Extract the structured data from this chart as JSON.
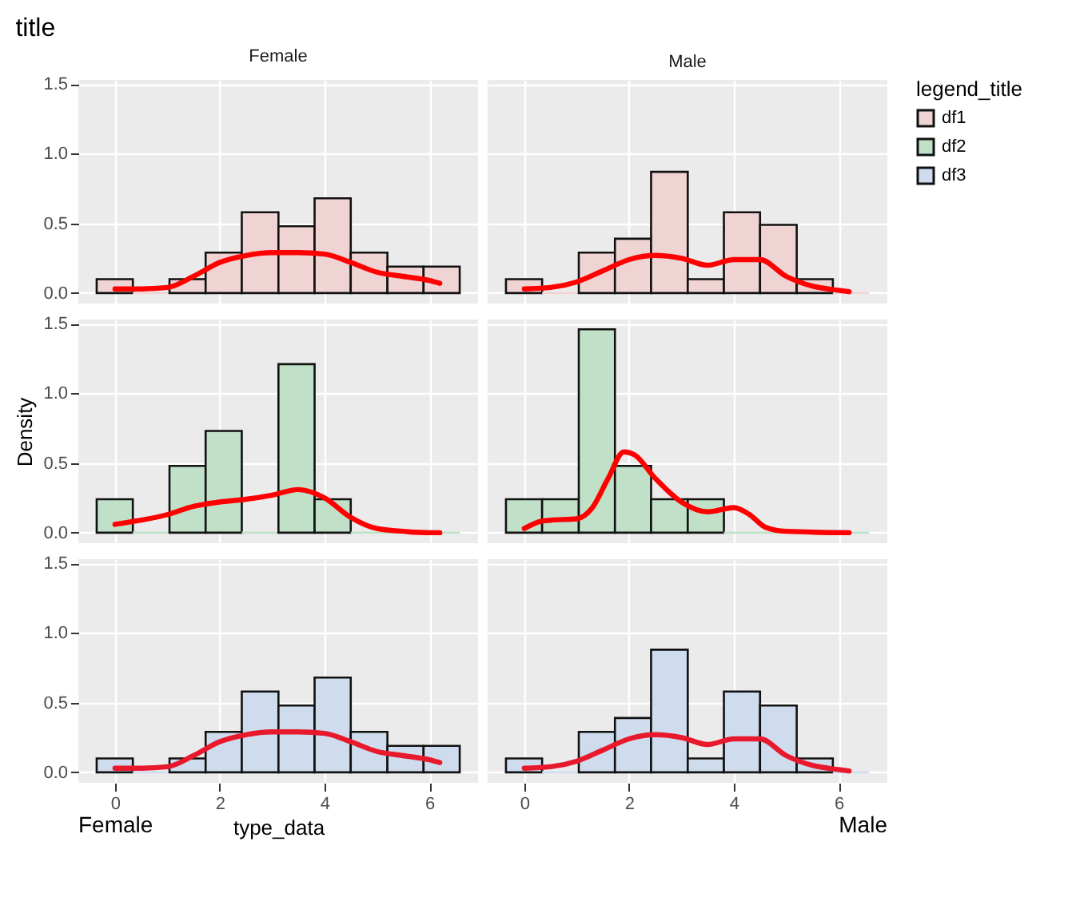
{
  "chart_data": [
    {
      "type": "histogram",
      "title": "title",
      "subtitle": "Female",
      "legend_title": "legend_title",
      "legend": "right",
      "grid": true,
      "tick_labels": "y",
      "xlim": [
        -0.7,
        6.93
      ],
      "ylim": [
        -0.075,
        1.53
      ],
      "xticks": [
        {
          "value": 0,
          "label": null
        },
        {
          "value": 2,
          "label": null
        },
        {
          "value": 4,
          "label": null
        },
        {
          "value": 6,
          "label": null
        }
      ],
      "yticks": [
        {
          "value": 0,
          "label": "0.0"
        },
        {
          "value": 0.5,
          "label": "0.5"
        },
        {
          "value": 1,
          "label": "1.0"
        },
        {
          "value": 1.5,
          "label": "1.5"
        }
      ],
      "bins": [
        -0.35,
        0.34,
        1.04,
        1.73,
        2.42,
        3.12,
        3.81,
        4.5,
        5.2,
        5.89,
        6.58
      ],
      "series": [
        {
          "name": "df1",
          "color": "#f0d4d4",
          "values": [
            0.1,
            0,
            0.1,
            0.29,
            0.58,
            0.48,
            0.68,
            0.29,
            0.19,
            0.19
          ]
        },
        {
          "type": "line",
          "color": "#ff0000",
          "x": [
            0,
            0.5,
            1,
            1.5,
            2,
            2.5,
            3,
            3.5,
            4,
            4.5,
            5,
            5.5,
            6,
            6.2
          ],
          "values": [
            0.03,
            0.03,
            0.04,
            0.12,
            0.22,
            0.27,
            0.29,
            0.29,
            0.28,
            0.22,
            0.15,
            0.12,
            0.09,
            0.07
          ]
        }
      ]
    },
    {
      "type": "histogram",
      "subtitle": "Male",
      "grid": true,
      "tick_labels": false,
      "xlim": [
        -0.7,
        6.93
      ],
      "ylim": [
        -0.075,
        1.53
      ],
      "xticks": [
        {
          "value": 0,
          "label": null
        },
        {
          "value": 2,
          "label": null
        },
        {
          "value": 4,
          "label": null
        },
        {
          "value": 6,
          "label": null
        }
      ],
      "yticks": [
        {
          "value": 0,
          "label": null
        },
        {
          "value": 0.5,
          "label": null
        },
        {
          "value": 1,
          "label": null
        },
        {
          "value": 1.5,
          "label": null
        }
      ],
      "bins": [
        -0.35,
        0.34,
        1.04,
        1.73,
        2.42,
        3.12,
        3.81,
        4.5,
        5.2,
        5.89,
        6.58
      ],
      "series": [
        {
          "color": "#f0d4d4",
          "values": [
            0.1,
            0,
            0.29,
            0.39,
            0.87,
            0.1,
            0.58,
            0.49,
            0.1,
            0
          ]
        },
        {
          "type": "line",
          "color": "#ff0000",
          "x": [
            0,
            0.5,
            1,
            1.5,
            2,
            2.5,
            3,
            3.5,
            4,
            4.5,
            5,
            5.5,
            6,
            6.2
          ],
          "values": [
            0.03,
            0.04,
            0.08,
            0.16,
            0.24,
            0.27,
            0.25,
            0.2,
            0.24,
            0.24,
            0.12,
            0.05,
            0.02,
            0.01
          ]
        }
      ]
    },
    {
      "type": "histogram",
      "ylabel": "Density",
      "legend": "right",
      "grid": true,
      "tick_labels": "y",
      "xlim": [
        -0.7,
        6.93
      ],
      "ylim": [
        -0.075,
        1.53
      ],
      "xticks": [
        {
          "value": 0,
          "label": null
        },
        {
          "value": 2,
          "label": null
        },
        {
          "value": 4,
          "label": null
        },
        {
          "value": 6,
          "label": null
        }
      ],
      "yticks": [
        {
          "value": 0,
          "label": "0.0"
        },
        {
          "value": 0.5,
          "label": "0.5"
        },
        {
          "value": 1,
          "label": "1.0"
        },
        {
          "value": 1.5,
          "label": "1.5"
        }
      ],
      "bins": [
        -0.35,
        0.34,
        1.04,
        1.73,
        2.42,
        3.12,
        3.81,
        4.5,
        5.2,
        5.89,
        6.58
      ],
      "series": [
        {
          "name": "df2",
          "color": "#c0e1c8",
          "values": [
            0.24,
            0,
            0.48,
            0.73,
            0,
            1.21,
            0.24,
            0,
            0,
            0
          ]
        },
        {
          "type": "line",
          "color": "#ff0000",
          "x": [
            0,
            0.5,
            1,
            1.5,
            2,
            2.5,
            3,
            3.5,
            4,
            4.5,
            5,
            5.5,
            6,
            6.2
          ],
          "values": [
            0.06,
            0.09,
            0.13,
            0.19,
            0.22,
            0.24,
            0.27,
            0.31,
            0.25,
            0.11,
            0.03,
            0.01,
            0,
            0
          ]
        }
      ]
    },
    {
      "type": "histogram",
      "grid": true,
      "tick_labels": false,
      "xlim": [
        -0.7,
        6.93
      ],
      "ylim": [
        -0.075,
        1.53
      ],
      "xticks": [
        {
          "value": 0,
          "label": null
        },
        {
          "value": 2,
          "label": null
        },
        {
          "value": 4,
          "label": null
        },
        {
          "value": 6,
          "label": null
        }
      ],
      "yticks": [
        {
          "value": 0,
          "label": null
        },
        {
          "value": 0.5,
          "label": null
        },
        {
          "value": 1,
          "label": null
        },
        {
          "value": 1.5,
          "label": null
        }
      ],
      "bins": [
        -0.35,
        0.34,
        1.04,
        1.73,
        2.42,
        3.12,
        3.81,
        4.5,
        5.2,
        5.89,
        6.58
      ],
      "series": [
        {
          "color": "#c0e1c8",
          "values": [
            0.24,
            0.24,
            1.46,
            0.48,
            0.24,
            0.24,
            0,
            0,
            0,
            0
          ]
        },
        {
          "type": "line",
          "color": "#ff0000",
          "x": [
            0,
            0.3,
            0.5,
            1,
            1.3,
            1.6,
            1.9,
            2.1,
            2.5,
            3,
            3.5,
            4,
            4.3,
            4.6,
            5,
            6.2
          ],
          "values": [
            0.03,
            0.08,
            0.09,
            0.1,
            0.18,
            0.39,
            0.58,
            0.56,
            0.39,
            0.22,
            0.15,
            0.18,
            0.13,
            0.04,
            0.01,
            0
          ]
        }
      ]
    },
    {
      "type": "histogram",
      "xlabel": "type_data",
      "annotations": [
        "Female"
      ],
      "legend": "right",
      "grid": true,
      "xlim": [
        -0.7,
        6.93
      ],
      "ylim": [
        -0.075,
        1.53
      ],
      "xticks": [
        0,
        2,
        4,
        6
      ],
      "yticks": [
        {
          "value": 0,
          "label": "0.0"
        },
        {
          "value": 0.5,
          "label": "0.5"
        },
        {
          "value": 1,
          "label": "1.0"
        },
        {
          "value": 1.5,
          "label": "1.5"
        }
      ],
      "bins": [
        -0.35,
        0.34,
        1.04,
        1.73,
        2.42,
        3.12,
        3.81,
        4.5,
        5.2,
        5.89,
        6.58
      ],
      "series": [
        {
          "name": "df3",
          "color": "#cfdcee",
          "values": [
            0.1,
            0,
            0.1,
            0.29,
            0.58,
            0.48,
            0.68,
            0.29,
            0.19,
            0.19
          ]
        },
        {
          "type": "line",
          "color": "#e8192c",
          "x": [
            0,
            0.5,
            1,
            1.5,
            2,
            2.5,
            3,
            3.5,
            4,
            4.5,
            5,
            5.5,
            6,
            6.2
          ],
          "values": [
            0.03,
            0.03,
            0.04,
            0.12,
            0.22,
            0.27,
            0.29,
            0.29,
            0.28,
            0.22,
            0.15,
            0.12,
            0.09,
            0.07
          ]
        }
      ]
    },
    {
      "type": "histogram",
      "annotations": [
        "Male"
      ],
      "grid": true,
      "tick_labels": "x",
      "xlim": [
        -0.7,
        6.93
      ],
      "ylim": [
        -0.075,
        1.53
      ],
      "xticks": [
        0,
        2,
        4,
        6
      ],
      "yticks": [
        {
          "value": 0,
          "label": null
        },
        {
          "value": 0.5,
          "label": null
        },
        {
          "value": 1,
          "label": null
        },
        {
          "value": 1.5,
          "label": null
        }
      ],
      "bins": [
        -0.35,
        0.34,
        1.04,
        1.73,
        2.42,
        3.12,
        3.81,
        4.5,
        5.2,
        5.89,
        6.58
      ],
      "series": [
        {
          "color": "#cfdcee",
          "values": [
            0.1,
            0,
            0.29,
            0.39,
            0.88,
            0.1,
            0.58,
            0.48,
            0.1,
            0
          ]
        },
        {
          "type": "line",
          "color": "#e8192c",
          "x": [
            0,
            0.5,
            1,
            1.5,
            2,
            2.5,
            3,
            3.5,
            4,
            4.5,
            5,
            5.5,
            6,
            6.2
          ],
          "values": [
            0.03,
            0.04,
            0.08,
            0.16,
            0.24,
            0.27,
            0.25,
            0.2,
            0.24,
            0.24,
            0.12,
            0.05,
            0.02,
            0.01
          ]
        }
      ]
    }
  ]
}
